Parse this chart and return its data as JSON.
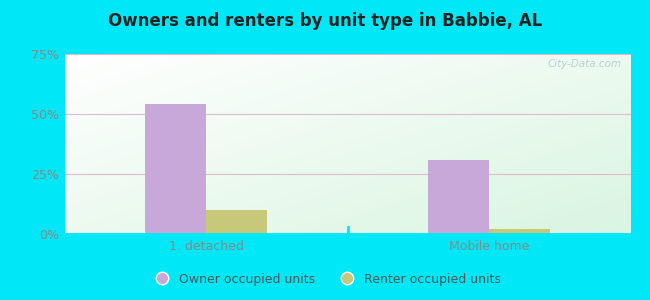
{
  "title": "Owners and renters by unit type in Babbie, AL",
  "categories": [
    "1. detached",
    "Mobile home"
  ],
  "owner_values": [
    54,
    31
  ],
  "renter_values": [
    10,
    2
  ],
  "owner_color": "#c8a8d8",
  "renter_color": "#c8c87a",
  "ylim": [
    0,
    75
  ],
  "yticks": [
    0,
    25,
    50,
    75
  ],
  "ytick_labels": [
    "0%",
    "25%",
    "50%",
    "75%"
  ],
  "outer_background": "#00e8f8",
  "watermark": "City-Data.com",
  "legend_owner": "Owner occupied units",
  "legend_renter": "Renter occupied units",
  "bar_width": 0.28,
  "grid_color": "#e0b8d0",
  "tick_color": "#888888",
  "title_color": "#222222"
}
